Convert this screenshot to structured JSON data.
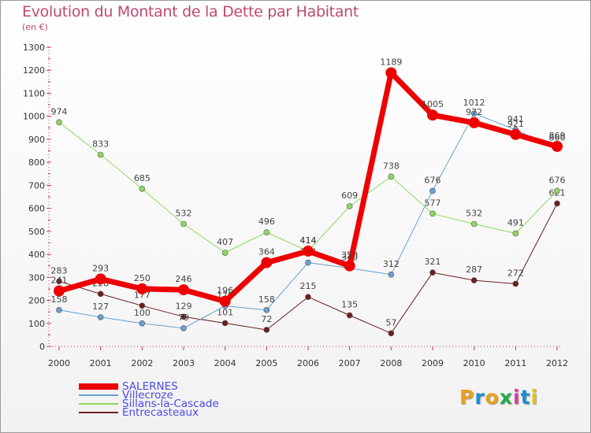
{
  "title": "Evolution du Montant de la Dette par Habitant",
  "unit": "(en €)",
  "logo": {
    "text": "Proxiti",
    "colors": [
      "#e8a01e",
      "#1a8fd0",
      "#e8a01e",
      "#26a946",
      "#d63fa0",
      "#1a8fd0",
      "#e8c01e"
    ]
  },
  "chart_data": {
    "type": "line",
    "title": "Evolution du Montant de la Dette par Habitant",
    "ylabel": "(en €)",
    "x": [
      "2000",
      "2001",
      "2002",
      "2003",
      "2004",
      "2005",
      "2006",
      "2007",
      "2008",
      "2009",
      "2010",
      "2011",
      "2012"
    ],
    "ylim": [
      0,
      1300
    ],
    "yticks": [
      0,
      100,
      200,
      300,
      400,
      500,
      600,
      700,
      800,
      900,
      1000,
      1100,
      1200,
      1300
    ],
    "grid": false,
    "legend_position": "bottom-left",
    "series": [
      {
        "name": "Entrecasteaux",
        "color": "#6b1f1f",
        "width": 1,
        "marker": 3.5,
        "values": [
          283,
          228,
          177,
          129,
          101,
          72,
          215,
          135,
          57,
          321,
          287,
          272,
          621
        ]
      },
      {
        "name": "Sillans-la-Cascade",
        "color": "#8fd860",
        "width": 1,
        "marker": 3.5,
        "values": [
          974,
          833,
          685,
          532,
          407,
          496,
          414,
          609,
          738,
          577,
          532,
          491,
          676
        ]
      },
      {
        "name": "Villecroze",
        "color": "#6aa0d0",
        "width": 1,
        "marker": 3.5,
        "values": [
          158,
          127,
          100,
          79,
          176,
          158,
          364,
          340,
          312,
          676,
          1012,
          941,
          860
        ]
      },
      {
        "name": "SALERNES",
        "color": "#ee0000",
        "width": 7,
        "marker": 7,
        "values": [
          241,
          293,
          250,
          246,
          196,
          364,
          414,
          350,
          1189,
          1005,
          972,
          921,
          869
        ]
      }
    ],
    "legend_order": [
      "SALERNES",
      "Villecroze",
      "Sillans-la-Cascade",
      "Entrecasteaux"
    ]
  }
}
